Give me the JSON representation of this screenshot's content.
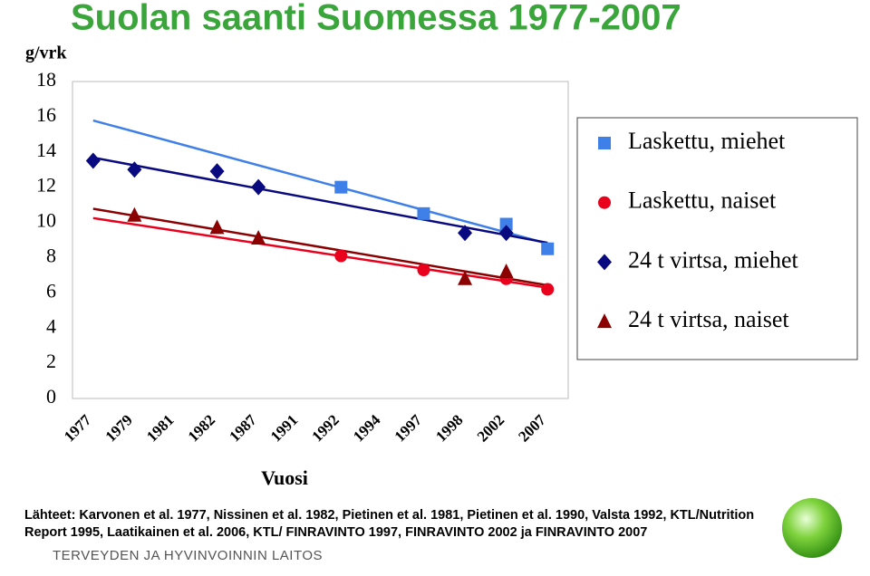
{
  "chart_data": {
    "type": "line",
    "title": "Suolan saanti Suomessa 1977-2007",
    "y_label": "g/vrk",
    "x_label": "Vuosi",
    "categories": [
      "1977",
      "1979",
      "1981",
      "1982",
      "1987",
      "1991",
      "1992",
      "1994",
      "1997",
      "1998",
      "2002",
      "2007"
    ],
    "series": [
      {
        "name": "Laskettu, miehet",
        "color": "#3f7fe8",
        "marker": "square",
        "trendline": true,
        "values": [
          null,
          null,
          null,
          null,
          null,
          null,
          12.0,
          null,
          10.5,
          null,
          9.9,
          8.5
        ]
      },
      {
        "name": "Laskettu, naiset",
        "color": "#e8001c",
        "marker": "circle",
        "trendline": true,
        "values": [
          null,
          null,
          null,
          null,
          null,
          null,
          8.1,
          null,
          7.3,
          null,
          6.8,
          6.2
        ]
      },
      {
        "name": "24 t virtsa, miehet",
        "color": "#0a0a80",
        "marker": "diamond",
        "trendline": true,
        "values": [
          13.5,
          13.0,
          null,
          12.9,
          12.0,
          null,
          null,
          null,
          null,
          9.4,
          9.4,
          null
        ]
      },
      {
        "name": "24 t virtsa, naiset",
        "color": "#8b0000",
        "marker": "triangle",
        "trendline": true,
        "values": [
          null,
          10.4,
          null,
          9.7,
          9.1,
          null,
          null,
          null,
          null,
          6.8,
          7.2,
          null
        ]
      }
    ],
    "ylim": [
      0,
      18
    ],
    "yticks": [
      0,
      2,
      4,
      6,
      8,
      10,
      12,
      14,
      16,
      18
    ],
    "grid": false,
    "legend": "right"
  },
  "source_lines": [
    "Lähteet: Karvonen et al. 1977, Nissinen et al. 1982, Pietinen et al. 1981, Pietinen et al. 1990, Valsta 1992, KTL/Nutrition",
    "Report 1995, Laatikainen et al. 2006, KTL/ FINRAVINTO 1997, FINRAVINTO 2002 ja FINRAVINTO 2007"
  ],
  "footer": "TERVEYDEN JA HYVINVOINNIN LAITOS"
}
